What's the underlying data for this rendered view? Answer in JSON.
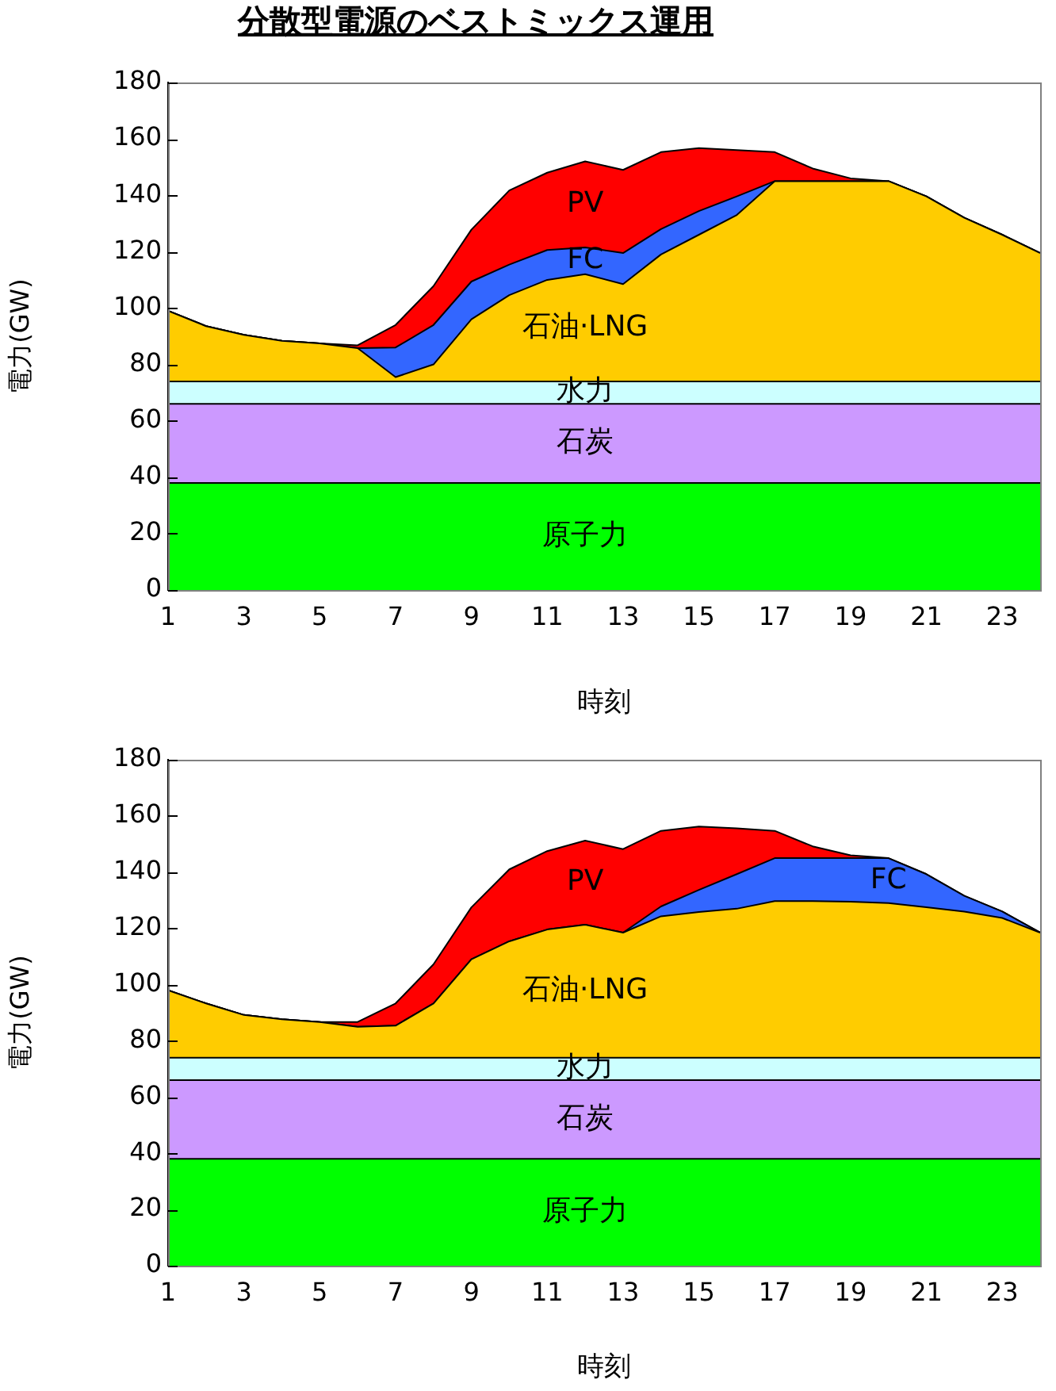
{
  "chart_data": [
    {
      "type": "area",
      "title": "分散型電源のベストミックス運用",
      "xlabel": "時刻",
      "ylabel": "電力(GW)",
      "stacked": true,
      "legend": false,
      "grid": false,
      "marker": "none",
      "x": [
        1,
        2,
        3,
        4,
        5,
        6,
        7,
        8,
        9,
        10,
        11,
        12,
        13,
        14,
        15,
        16,
        17,
        18,
        19,
        20,
        21,
        22,
        23,
        24
      ],
      "xlim": [
        1,
        24
      ],
      "xticks": [
        1,
        3,
        5,
        7,
        9,
        11,
        13,
        15,
        17,
        19,
        21,
        23
      ],
      "ylim": [
        0,
        180
      ],
      "yticks": [
        0,
        20,
        40,
        60,
        80,
        100,
        120,
        140,
        160,
        180
      ],
      "series": [
        {
          "name": "原子力",
          "color": "#00ff00",
          "values": [
            38,
            38,
            38,
            38,
            38,
            38,
            38,
            38,
            38,
            38,
            38,
            38,
            38,
            38,
            38,
            38,
            38,
            38,
            38,
            38,
            38,
            38,
            38,
            38
          ]
        },
        {
          "name": "石炭",
          "color": "#cc99ff",
          "values": [
            28,
            28,
            28,
            28,
            28,
            28,
            28,
            28,
            28,
            28,
            28,
            28,
            28,
            28,
            28,
            28,
            28,
            28,
            28,
            28,
            28,
            28,
            28,
            28
          ]
        },
        {
          "name": "水力",
          "color": "#ccffff",
          "values": [
            8,
            8,
            8,
            8,
            8,
            8,
            8,
            8,
            8,
            8,
            8,
            8,
            8,
            8,
            8,
            8,
            8,
            8,
            8,
            8,
            8,
            8,
            8,
            8
          ]
        },
        {
          "name": "石油·LNG",
          "color": "#ffcc00",
          "values": [
            25,
            19.6,
            16.5,
            14.4,
            13.5,
            11.8,
            1.5,
            6,
            22,
            30.6,
            36,
            38,
            34.5,
            45,
            52,
            59,
            71,
            71,
            71,
            71,
            65.6,
            58,
            52,
            45.5
          ]
        },
        {
          "name": "FC",
          "color": "#3366ff",
          "values": [
            0,
            0,
            0,
            0,
            0,
            0,
            10.5,
            14,
            13.4,
            10.8,
            10.6,
            9.5,
            11,
            9,
            8.4,
            6.6,
            0,
            0,
            0,
            0,
            0,
            0,
            0,
            0
          ]
        },
        {
          "name": "PV",
          "color": "#ff0000",
          "values": [
            0,
            0,
            0,
            0,
            0,
            1,
            8,
            13.8,
            18.4,
            26.3,
            27.4,
            30.5,
            29.5,
            27.3,
            22.3,
            16.4,
            10.3,
            4.5,
            1,
            0,
            0,
            0,
            0,
            0
          ]
        }
      ]
    },
    {
      "type": "area",
      "xlabel": "時刻",
      "ylabel": "電力(GW)",
      "stacked": true,
      "legend": false,
      "grid": false,
      "marker": "none",
      "x": [
        1,
        2,
        3,
        4,
        5,
        6,
        7,
        8,
        9,
        10,
        11,
        12,
        13,
        14,
        15,
        16,
        17,
        18,
        19,
        20,
        21,
        22,
        23,
        24
      ],
      "xlim": [
        1,
        24
      ],
      "xticks": [
        1,
        3,
        5,
        7,
        9,
        11,
        13,
        15,
        17,
        19,
        21,
        23
      ],
      "ylim": [
        0,
        180
      ],
      "yticks": [
        0,
        20,
        40,
        60,
        80,
        100,
        120,
        140,
        160,
        180
      ],
      "series": [
        {
          "name": "原子力",
          "color": "#00ff00",
          "values": [
            38,
            38,
            38,
            38,
            38,
            38,
            38,
            38,
            38,
            38,
            38,
            38,
            38,
            38,
            38,
            38,
            38,
            38,
            38,
            38,
            38,
            38,
            38,
            38
          ]
        },
        {
          "name": "石炭",
          "color": "#cc99ff",
          "values": [
            28,
            28,
            28,
            28,
            28,
            28,
            28,
            28,
            28,
            28,
            28,
            28,
            28,
            28,
            28,
            28,
            28,
            28,
            28,
            28,
            28,
            28,
            28,
            28
          ]
        },
        {
          "name": "水力",
          "color": "#ccffff",
          "values": [
            8,
            8,
            8,
            8,
            8,
            8,
            8,
            8,
            8,
            8,
            8,
            8,
            8,
            8,
            8,
            8,
            8,
            8,
            8,
            8,
            8,
            8,
            8,
            8
          ]
        },
        {
          "name": "石油·LNG",
          "color": "#ffcc00",
          "values": [
            24,
            19.3,
            15.2,
            13.7,
            12.7,
            11,
            11.4,
            19.3,
            35,
            41.4,
            45.6,
            47.3,
            44.5,
            50.3,
            51.8,
            53,
            55.7,
            55.7,
            55.5,
            55,
            53.5,
            52,
            49.7,
            44.5
          ]
        },
        {
          "name": "FC",
          "color": "#3366ff",
          "values": [
            0,
            0,
            0,
            0,
            0,
            0,
            0,
            0,
            0,
            0,
            0,
            0,
            0,
            3.5,
            7.9,
            12.3,
            15.3,
            15.3,
            15.5,
            16,
            11.8,
            5.6,
            2.3,
            0
          ]
        },
        {
          "name": "PV",
          "color": "#ff0000",
          "values": [
            0,
            0,
            0,
            0,
            0,
            1.7,
            7.9,
            13.9,
            18.5,
            25.6,
            27.9,
            29.9,
            29.7,
            26.9,
            22.5,
            16.3,
            9.7,
            4.2,
            1,
            0,
            0,
            0,
            0,
            0
          ]
        }
      ]
    }
  ]
}
